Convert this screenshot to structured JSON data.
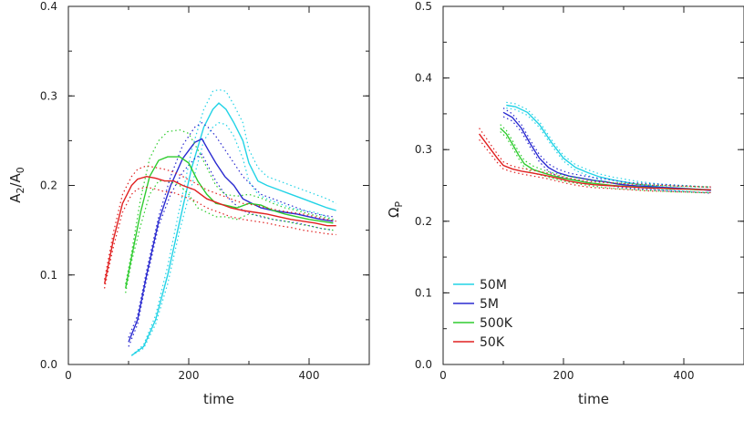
{
  "chart_data": [
    {
      "type": "line",
      "xlabel": "time",
      "ylabel_main": "A",
      "ylabel_sub2": "2",
      "ylabel_mid": "/A",
      "ylabel_sub0": "0",
      "xlim": [
        0,
        500
      ],
      "ylim": [
        0,
        0.4
      ],
      "xticks": [
        "0",
        "200",
        "400"
      ],
      "yticks": [
        "0.0",
        "0.1",
        "0.2",
        "0.3",
        "0.4"
      ],
      "series": [
        {
          "name": "50M",
          "color": "#22d3e6",
          "x": [
            105,
            125,
            145,
            165,
            185,
            205,
            225,
            240,
            250,
            262,
            275,
            290,
            300,
            315,
            330,
            350,
            370,
            390,
            410,
            430,
            445
          ],
          "y": [
            0.01,
            0.02,
            0.05,
            0.1,
            0.16,
            0.22,
            0.265,
            0.285,
            0.292,
            0.285,
            0.27,
            0.25,
            0.225,
            0.205,
            0.2,
            0.195,
            0.19,
            0.185,
            0.18,
            0.175,
            0.172
          ],
          "upper": [
            0.01,
            0.022,
            0.055,
            0.11,
            0.175,
            0.24,
            0.285,
            0.305,
            0.307,
            0.305,
            0.29,
            0.27,
            0.24,
            0.22,
            0.21,
            0.205,
            0.2,
            0.195,
            0.19,
            0.185,
            0.18
          ],
          "lower": [
            0.01,
            0.018,
            0.045,
            0.09,
            0.15,
            0.2,
            0.25,
            0.265,
            0.27,
            0.268,
            0.255,
            0.23,
            0.205,
            0.19,
            0.185,
            0.18,
            0.175,
            0.172,
            0.17,
            0.165,
            0.16
          ]
        },
        {
          "name": "5M",
          "color": "#2a2ad0",
          "x": [
            100,
            115,
            130,
            150,
            170,
            190,
            210,
            222,
            232,
            245,
            260,
            275,
            290,
            305,
            320,
            340,
            360,
            380,
            400,
            420,
            440
          ],
          "y": [
            0.025,
            0.05,
            0.1,
            0.16,
            0.2,
            0.23,
            0.248,
            0.252,
            0.24,
            0.225,
            0.21,
            0.2,
            0.185,
            0.18,
            0.175,
            0.172,
            0.17,
            0.168,
            0.165,
            0.162,
            0.16
          ],
          "upper": [
            0.03,
            0.055,
            0.105,
            0.165,
            0.21,
            0.245,
            0.265,
            0.27,
            0.265,
            0.255,
            0.24,
            0.225,
            0.21,
            0.2,
            0.19,
            0.185,
            0.18,
            0.175,
            0.17,
            0.167,
            0.165
          ],
          "lower": [
            0.02,
            0.045,
            0.095,
            0.155,
            0.19,
            0.215,
            0.23,
            0.235,
            0.222,
            0.205,
            0.19,
            0.18,
            0.172,
            0.168,
            0.165,
            0.162,
            0.16,
            0.158,
            0.155,
            0.152,
            0.15
          ]
        },
        {
          "name": "500K",
          "color": "#2ecc2e",
          "x": [
            95,
            105,
            120,
            135,
            150,
            165,
            185,
            200,
            215,
            230,
            245,
            260,
            280,
            300,
            320,
            340,
            360,
            380,
            400,
            420,
            440
          ],
          "y": [
            0.085,
            0.12,
            0.17,
            0.21,
            0.228,
            0.232,
            0.232,
            0.225,
            0.205,
            0.19,
            0.18,
            0.178,
            0.175,
            0.18,
            0.178,
            0.172,
            0.168,
            0.165,
            0.162,
            0.16,
            0.158
          ],
          "upper": [
            0.09,
            0.125,
            0.185,
            0.23,
            0.25,
            0.26,
            0.262,
            0.258,
            0.24,
            0.22,
            0.2,
            0.19,
            0.188,
            0.19,
            0.186,
            0.18,
            0.175,
            0.172,
            0.168,
            0.165,
            0.162
          ],
          "lower": [
            0.08,
            0.115,
            0.155,
            0.19,
            0.205,
            0.205,
            0.2,
            0.19,
            0.175,
            0.17,
            0.165,
            0.165,
            0.162,
            0.168,
            0.166,
            0.162,
            0.16,
            0.157,
            0.155,
            0.152,
            0.15
          ]
        },
        {
          "name": "50K",
          "color": "#e02020",
          "x": [
            60,
            75,
            90,
            105,
            115,
            130,
            145,
            160,
            175,
            190,
            210,
            230,
            250,
            270,
            290,
            310,
            330,
            350,
            370,
            390,
            410,
            430,
            445
          ],
          "y": [
            0.09,
            0.14,
            0.18,
            0.2,
            0.207,
            0.21,
            0.208,
            0.205,
            0.205,
            0.2,
            0.195,
            0.185,
            0.18,
            0.175,
            0.172,
            0.17,
            0.168,
            0.165,
            0.162,
            0.16,
            0.158,
            0.155,
            0.155
          ],
          "upper": [
            0.095,
            0.148,
            0.19,
            0.21,
            0.218,
            0.222,
            0.22,
            0.218,
            0.215,
            0.21,
            0.203,
            0.195,
            0.19,
            0.185,
            0.18,
            0.178,
            0.175,
            0.172,
            0.17,
            0.168,
            0.165,
            0.162,
            0.16
          ],
          "lower": [
            0.085,
            0.132,
            0.17,
            0.19,
            0.196,
            0.198,
            0.196,
            0.193,
            0.192,
            0.188,
            0.183,
            0.175,
            0.17,
            0.165,
            0.162,
            0.16,
            0.158,
            0.155,
            0.153,
            0.15,
            0.148,
            0.146,
            0.145
          ]
        }
      ]
    },
    {
      "type": "line",
      "xlabel": "time",
      "ylabel_main": "Ω",
      "ylabel_sub": "P",
      "xlim": [
        0,
        500
      ],
      "ylim": [
        0,
        0.5
      ],
      "xticks": [
        "0",
        "200",
        "400"
      ],
      "yticks": [
        "0.0",
        "0.1",
        "0.2",
        "0.3",
        "0.4",
        "0.5"
      ],
      "legend_position": "lower-left",
      "legend": [
        "50M",
        "5M",
        "500K",
        "50K"
      ],
      "series": [
        {
          "name": "50M",
          "color": "#22d3e6",
          "x": [
            105,
            120,
            140,
            160,
            180,
            200,
            220,
            240,
            260,
            280,
            300,
            320,
            340,
            360,
            380,
            400,
            420,
            445
          ],
          "y": [
            0.362,
            0.36,
            0.352,
            0.335,
            0.31,
            0.288,
            0.275,
            0.268,
            0.262,
            0.258,
            0.255,
            0.252,
            0.25,
            0.248,
            0.247,
            0.246,
            0.245,
            0.244
          ],
          "upper": [
            0.366,
            0.364,
            0.356,
            0.339,
            0.314,
            0.292,
            0.279,
            0.272,
            0.266,
            0.262,
            0.259,
            0.256,
            0.254,
            0.252,
            0.251,
            0.25,
            0.249,
            0.248
          ],
          "lower": [
            0.358,
            0.356,
            0.348,
            0.331,
            0.306,
            0.284,
            0.271,
            0.264,
            0.258,
            0.254,
            0.251,
            0.248,
            0.246,
            0.244,
            0.243,
            0.242,
            0.241,
            0.24
          ]
        },
        {
          "name": "5M",
          "color": "#2a2ad0",
          "x": [
            100,
            115,
            130,
            145,
            160,
            175,
            190,
            210,
            230,
            250,
            270,
            290,
            310,
            330,
            350,
            370,
            390,
            410,
            430,
            445
          ],
          "y": [
            0.352,
            0.345,
            0.33,
            0.308,
            0.288,
            0.275,
            0.268,
            0.263,
            0.26,
            0.257,
            0.255,
            0.252,
            0.25,
            0.249,
            0.248,
            0.247,
            0.246,
            0.245,
            0.244,
            0.243
          ],
          "upper": [
            0.358,
            0.35,
            0.335,
            0.313,
            0.293,
            0.28,
            0.273,
            0.267,
            0.264,
            0.261,
            0.259,
            0.256,
            0.254,
            0.253,
            0.252,
            0.251,
            0.25,
            0.249,
            0.248,
            0.247
          ],
          "lower": [
            0.346,
            0.34,
            0.325,
            0.303,
            0.283,
            0.27,
            0.263,
            0.259,
            0.256,
            0.253,
            0.251,
            0.248,
            0.246,
            0.245,
            0.244,
            0.243,
            0.242,
            0.241,
            0.24,
            0.239
          ]
        },
        {
          "name": "500K",
          "color": "#2ecc2e",
          "x": [
            95,
            105,
            115,
            125,
            135,
            150,
            165,
            180,
            200,
            220,
            240,
            260,
            280,
            300,
            320,
            340,
            360,
            380,
            400,
            420,
            445
          ],
          "y": [
            0.33,
            0.322,
            0.308,
            0.293,
            0.28,
            0.272,
            0.268,
            0.264,
            0.26,
            0.257,
            0.254,
            0.252,
            0.25,
            0.249,
            0.248,
            0.247,
            0.246,
            0.245,
            0.245,
            0.244,
            0.244
          ],
          "upper": [
            0.335,
            0.327,
            0.313,
            0.298,
            0.285,
            0.277,
            0.272,
            0.268,
            0.264,
            0.261,
            0.258,
            0.256,
            0.254,
            0.253,
            0.252,
            0.251,
            0.25,
            0.249,
            0.249,
            0.248,
            0.248
          ],
          "lower": [
            0.325,
            0.317,
            0.303,
            0.288,
            0.275,
            0.267,
            0.264,
            0.26,
            0.256,
            0.253,
            0.25,
            0.248,
            0.246,
            0.245,
            0.244,
            0.243,
            0.242,
            0.241,
            0.241,
            0.24,
            0.24
          ]
        },
        {
          "name": "50K",
          "color": "#e02020",
          "x": [
            60,
            75,
            90,
            100,
            115,
            130,
            150,
            170,
            190,
            210,
            230,
            250,
            270,
            290,
            310,
            330,
            350,
            370,
            390,
            410,
            430,
            445
          ],
          "y": [
            0.322,
            0.305,
            0.288,
            0.278,
            0.273,
            0.27,
            0.267,
            0.264,
            0.26,
            0.256,
            0.253,
            0.251,
            0.25,
            0.249,
            0.248,
            0.247,
            0.246,
            0.246,
            0.245,
            0.245,
            0.244,
            0.244
          ],
          "upper": [
            0.33,
            0.312,
            0.294,
            0.283,
            0.277,
            0.274,
            0.271,
            0.268,
            0.264,
            0.26,
            0.257,
            0.255,
            0.254,
            0.253,
            0.252,
            0.251,
            0.25,
            0.25,
            0.249,
            0.249,
            0.248,
            0.248
          ],
          "lower": [
            0.314,
            0.298,
            0.282,
            0.273,
            0.269,
            0.266,
            0.263,
            0.26,
            0.256,
            0.252,
            0.249,
            0.247,
            0.246,
            0.245,
            0.244,
            0.243,
            0.242,
            0.242,
            0.241,
            0.241,
            0.24,
            0.24
          ]
        }
      ]
    }
  ]
}
